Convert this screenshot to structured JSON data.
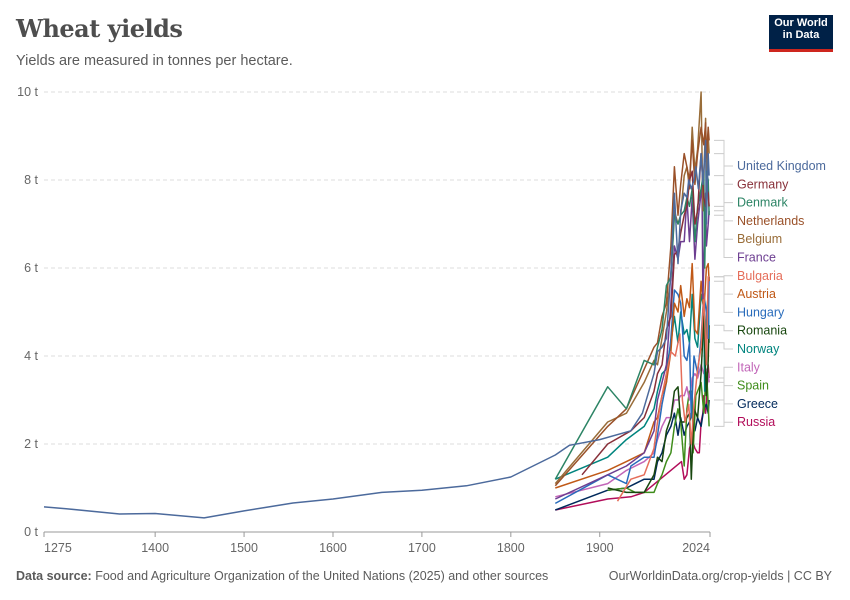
{
  "header": {
    "title": "Wheat yields",
    "subtitle": "Yields are measured in tonnes per hectare.",
    "logo_line1": "Our World",
    "logo_line2": "in Data"
  },
  "footer": {
    "source_label": "Data source:",
    "source_text": "Food and Agriculture Organization of the United Nations (2025) and other sources",
    "credit": "OurWorldinData.org/crop-yields | CC BY"
  },
  "chart_data": {
    "type": "line",
    "title": "Wheat yields",
    "xlim": [
      1275,
      2024
    ],
    "ylim": [
      0,
      10
    ],
    "x_ticks": [
      "1275",
      "1400",
      "1500",
      "1600",
      "1700",
      "1800",
      "1900",
      "2024"
    ],
    "y_ticks": [
      "0 t",
      "2 t",
      "4 t",
      "6 t",
      "8 t",
      "10 t"
    ],
    "grid": "horizontal dashed",
    "legend": "right, inline labels",
    "series": [
      {
        "name": "United Kingdom",
        "color": "#4c6a9c",
        "x": [
          1275,
          1300,
          1360,
          1400,
          1455,
          1500,
          1555,
          1600,
          1655,
          1700,
          1750,
          1800,
          1850,
          1866,
          1900,
          1935,
          1948,
          1961,
          1965,
          1970,
          1975,
          1980,
          1984,
          1988,
          1991,
          1995,
          1998,
          2000,
          2003,
          2006,
          2008,
          2011,
          2014,
          2016,
          2019,
          2020,
          2022,
          2023
        ],
        "y": [
          0.57,
          0.53,
          0.41,
          0.42,
          0.32,
          0.48,
          0.66,
          0.75,
          0.9,
          0.95,
          1.05,
          1.25,
          1.75,
          1.97,
          2.1,
          2.3,
          2.7,
          3.6,
          4.1,
          4.2,
          4.4,
          5.9,
          7.7,
          6.1,
          7.3,
          7.7,
          7.6,
          8.0,
          7.8,
          8.0,
          8.3,
          7.8,
          8.6,
          7.9,
          8.9,
          7.0,
          8.6,
          8.1
        ]
      },
      {
        "name": "Germany",
        "color": "#883039",
        "x": [
          1880,
          1909,
          1935,
          1950,
          1961,
          1965,
          1970,
          1975,
          1980,
          1984,
          1988,
          1991,
          1995,
          1998,
          2001,
          2004,
          2007,
          2010,
          2014,
          2017,
          2019,
          2020,
          2022,
          2023
        ],
        "y": [
          1.3,
          2.0,
          2.3,
          2.6,
          3.2,
          3.6,
          3.8,
          4.6,
          4.9,
          6.3,
          6.4,
          6.8,
          7.2,
          7.4,
          8.0,
          8.2,
          7.0,
          7.3,
          8.6,
          7.6,
          7.4,
          7.8,
          7.7,
          7.4
        ]
      },
      {
        "name": "Denmark",
        "color": "#2c8465",
        "x": [
          1850,
          1909,
          1930,
          1950,
          1961,
          1965,
          1970,
          1975,
          1980,
          1984,
          1988,
          1991,
          1995,
          1998,
          2001,
          2004,
          2007,
          2010,
          2014,
          2017,
          2018,
          2020,
          2022,
          2023
        ],
        "y": [
          1.2,
          3.3,
          2.8,
          3.9,
          3.8,
          4.2,
          4.6,
          5.6,
          5.8,
          7.2,
          7.0,
          7.2,
          7.3,
          7.6,
          7.4,
          7.8,
          6.6,
          7.4,
          7.8,
          8.2,
          6.0,
          8.2,
          8.0,
          7.2
        ]
      },
      {
        "name": "Netherlands",
        "color": "#9a5129",
        "x": [
          1850,
          1909,
          1930,
          1950,
          1961,
          1965,
          1970,
          1975,
          1980,
          1984,
          1988,
          1991,
          1995,
          1998,
          2001,
          2004,
          2007,
          2010,
          2014,
          2017,
          2019,
          2020,
          2022,
          2023
        ],
        "y": [
          1.05,
          2.4,
          2.8,
          3.7,
          4.2,
          4.3,
          4.9,
          5.2,
          6.5,
          8.3,
          7.2,
          7.9,
          8.6,
          8.3,
          8.0,
          8.9,
          7.9,
          8.6,
          9.2,
          8.8,
          9.3,
          8.5,
          9.2,
          8.9
        ]
      },
      {
        "name": "Belgium",
        "color": "#996d39",
        "x": [
          1850,
          1909,
          1930,
          1950,
          1961,
          1965,
          1970,
          1975,
          1980,
          1984,
          1988,
          1991,
          1995,
          1998,
          2001,
          2004,
          2007,
          2010,
          2014,
          2016,
          2019,
          2020,
          2022,
          2023
        ],
        "y": [
          1.1,
          2.5,
          2.7,
          3.4,
          3.9,
          3.8,
          4.4,
          5.0,
          5.8,
          7.3,
          7.0,
          7.2,
          8.1,
          8.3,
          7.8,
          9.2,
          8.2,
          8.7,
          10.0,
          7.3,
          9.4,
          8.1,
          9.0,
          8.6
        ]
      },
      {
        "name": "France",
        "color": "#6d3e91",
        "x": [
          1850,
          1909,
          1930,
          1950,
          1961,
          1965,
          1970,
          1975,
          1980,
          1984,
          1988,
          1991,
          1995,
          1998,
          2001,
          2004,
          2007,
          2010,
          2015,
          2016,
          2019,
          2020,
          2022,
          2023
        ],
        "y": [
          0.75,
          1.3,
          1.5,
          1.8,
          2.3,
          3.0,
          3.4,
          3.8,
          5.2,
          6.5,
          6.2,
          6.6,
          6.6,
          7.6,
          6.6,
          7.6,
          6.2,
          7.0,
          7.9,
          5.3,
          7.7,
          6.5,
          7.0,
          7.3
        ]
      },
      {
        "name": "Bulgaria",
        "color": "#e56e5a",
        "x": [
          1920,
          1935,
          1950,
          1961,
          1965,
          1970,
          1975,
          1980,
          1985,
          1990,
          1993,
          1996,
          2000,
          2003,
          2006,
          2010,
          2014,
          2017,
          2020,
          2022,
          2023
        ],
        "y": [
          0.7,
          1.2,
          1.3,
          1.9,
          2.5,
          3.1,
          3.6,
          4.1,
          4.0,
          4.5,
          3.0,
          2.5,
          2.9,
          2.0,
          2.9,
          3.7,
          4.2,
          5.4,
          3.8,
          5.8,
          5.8
        ]
      },
      {
        "name": "Austria",
        "color": "#c05917",
        "x": [
          1850,
          1909,
          1930,
          1950,
          1961,
          1965,
          1970,
          1975,
          1980,
          1984,
          1988,
          1991,
          1995,
          1998,
          2001,
          2004,
          2007,
          2010,
          2014,
          2017,
          2020,
          2022,
          2023
        ],
        "y": [
          1.0,
          1.4,
          1.6,
          1.8,
          2.5,
          2.6,
          3.1,
          3.4,
          4.1,
          5.2,
          5.0,
          5.6,
          4.9,
          5.3,
          5.1,
          6.1,
          4.6,
          4.5,
          5.7,
          5.0,
          6.0,
          6.1,
          5.7
        ]
      },
      {
        "name": "Hungary",
        "color": "#286bbb",
        "x": [
          1850,
          1909,
          1930,
          1935,
          1950,
          1961,
          1965,
          1970,
          1975,
          1980,
          1984,
          1988,
          1991,
          1995,
          1998,
          2001,
          2003,
          2006,
          2010,
          2014,
          2017,
          2020,
          2022,
          2023
        ],
        "y": [
          0.65,
          1.3,
          1.1,
          1.5,
          1.7,
          1.7,
          2.2,
          2.9,
          3.4,
          4.4,
          5.5,
          5.4,
          5.2,
          4.0,
          3.9,
          4.3,
          2.6,
          4.0,
          3.6,
          4.4,
          5.4,
          5.0,
          4.4,
          5.8
        ]
      },
      {
        "name": "Romania",
        "color": "#18470f",
        "x": [
          1909,
          1930,
          1950,
          1961,
          1965,
          1970,
          1975,
          1980,
          1984,
          1988,
          1991,
          1995,
          1998,
          2001,
          2003,
          2006,
          2010,
          2014,
          2017,
          2020,
          2022,
          2023
        ],
        "y": [
          1.0,
          0.9,
          0.9,
          1.3,
          1.7,
          1.6,
          2.3,
          2.6,
          3.2,
          3.3,
          2.5,
          2.5,
          2.6,
          2.7,
          1.2,
          2.8,
          2.6,
          3.6,
          4.9,
          3.1,
          3.9,
          4.7
        ]
      },
      {
        "name": "Norway",
        "color": "#00847e",
        "x": [
          1850,
          1909,
          1930,
          1950,
          1961,
          1965,
          1970,
          1975,
          1980,
          1984,
          1988,
          1991,
          1995,
          1998,
          2001,
          2004,
          2007,
          2010,
          2014,
          2017,
          2018,
          2020,
          2022,
          2023
        ],
        "y": [
          1.2,
          1.7,
          2.1,
          2.4,
          2.8,
          3.2,
          3.6,
          3.7,
          4.3,
          4.9,
          4.3,
          5.0,
          4.5,
          4.6,
          4.3,
          5.4,
          4.4,
          4.2,
          5.4,
          5.1,
          3.2,
          4.9,
          5.4,
          4.3
        ]
      },
      {
        "name": "Italy",
        "color": "#c266b8",
        "x": [
          1850,
          1909,
          1930,
          1950,
          1961,
          1965,
          1970,
          1975,
          1980,
          1984,
          1988,
          1991,
          1995,
          1998,
          2001,
          2004,
          2007,
          2010,
          2014,
          2017,
          2020,
          2022,
          2023
        ],
        "y": [
          0.8,
          1.1,
          1.4,
          1.6,
          1.8,
          2.1,
          2.4,
          2.6,
          2.6,
          3.0,
          3.0,
          3.1,
          3.1,
          3.3,
          3.0,
          3.5,
          3.6,
          3.5,
          3.8,
          3.6,
          3.7,
          3.6,
          3.4
        ]
      },
      {
        "name": "Spain",
        "color": "#3f8d1b",
        "x": [
          1909,
          1930,
          1940,
          1950,
          1961,
          1965,
          1970,
          1975,
          1980,
          1984,
          1988,
          1991,
          1995,
          1998,
          2001,
          2004,
          2005,
          2008,
          2010,
          2014,
          2017,
          2020,
          2022,
          2023
        ],
        "y": [
          0.95,
          1.0,
          0.9,
          0.9,
          0.9,
          1.1,
          1.3,
          1.6,
          1.8,
          2.4,
          2.8,
          2.5,
          1.5,
          2.8,
          3.2,
          3.2,
          1.8,
          3.1,
          3.2,
          3.4,
          2.7,
          3.7,
          2.9,
          2.4
        ]
      },
      {
        "name": "Greece",
        "color": "#00295b",
        "x": [
          1850,
          1909,
          1930,
          1950,
          1961,
          1965,
          1970,
          1975,
          1980,
          1984,
          1988,
          1991,
          1995,
          1998,
          2001,
          2004,
          2007,
          2010,
          2014,
          2017,
          2020,
          2022,
          2023
        ],
        "y": [
          0.5,
          0.95,
          1.0,
          1.2,
          1.2,
          1.6,
          1.8,
          2.2,
          2.4,
          2.7,
          2.2,
          2.6,
          2.2,
          2.4,
          2.5,
          2.7,
          2.3,
          2.6,
          2.4,
          2.8,
          2.9,
          2.7,
          3.0
        ]
      },
      {
        "name": "Russia",
        "color": "#b20d5a",
        "x": [
          1850,
          1909,
          1935,
          1950,
          1992,
          1995,
          1998,
          2001,
          2004,
          2007,
          2010,
          2012,
          2014,
          2016,
          2017,
          2019,
          2020,
          2022,
          2023
        ],
        "y": [
          0.5,
          0.75,
          0.8,
          0.9,
          1.6,
          1.2,
          1.3,
          1.9,
          2.1,
          1.9,
          1.8,
          1.8,
          2.5,
          2.7,
          3.1,
          2.7,
          2.9,
          3.8,
          3.5
        ]
      }
    ]
  }
}
